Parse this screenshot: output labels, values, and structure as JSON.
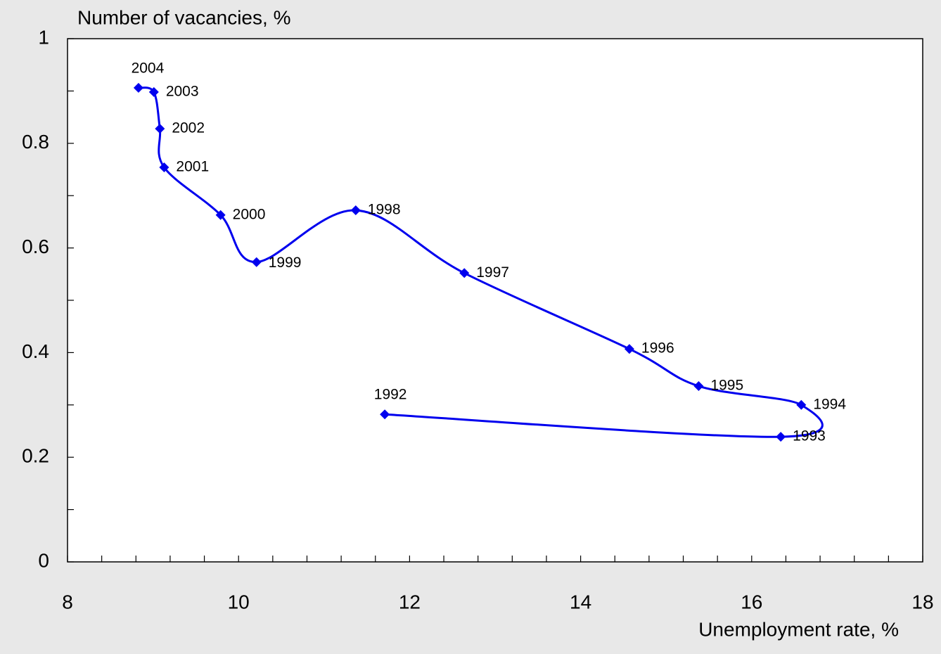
{
  "chart_data": {
    "type": "line",
    "x_label": "Unemployment rate, %",
    "y_label": "Number of vacancies, %",
    "series": [
      {
        "name": "Vacancies",
        "color": "#0000ee",
        "x": [
          11.71,
          16.34,
          16.58,
          15.38,
          14.57,
          12.64,
          11.37,
          10.21,
          9.79,
          9.13,
          9.08,
          9.01,
          8.83
        ],
        "values": [
          0.282,
          0.239,
          0.3,
          0.336,
          0.407,
          0.552,
          0.672,
          0.573,
          0.663,
          0.754,
          0.828,
          0.898,
          0.906
        ],
        "point_labels": [
          "1992",
          "1993",
          "1994",
          "1995",
          "1996",
          "1997",
          "1998",
          "1999",
          "2000",
          "2001",
          "2002",
          "2003",
          "2004"
        ]
      }
    ],
    "xlim": [
      8,
      18
    ],
    "xticks": [
      8,
      10,
      12,
      14,
      16,
      18
    ],
    "xminor_ticks": [
      8.4,
      8.8,
      9.2,
      9.6,
      10.4,
      10.8,
      11.2,
      11.6,
      12.4,
      12.8,
      13.2,
      13.6,
      14.4,
      14.8,
      15.2,
      15.6,
      16.4,
      16.8,
      17.2,
      17.6
    ],
    "ylim": [
      0,
      1
    ],
    "yticks": [
      0,
      0.2,
      0.4,
      0.6,
      0.8,
      1
    ],
    "yminor_ticks": [
      0.1,
      0.3,
      0.5,
      0.7,
      0.9
    ],
    "smooth": true,
    "grid": false
  }
}
